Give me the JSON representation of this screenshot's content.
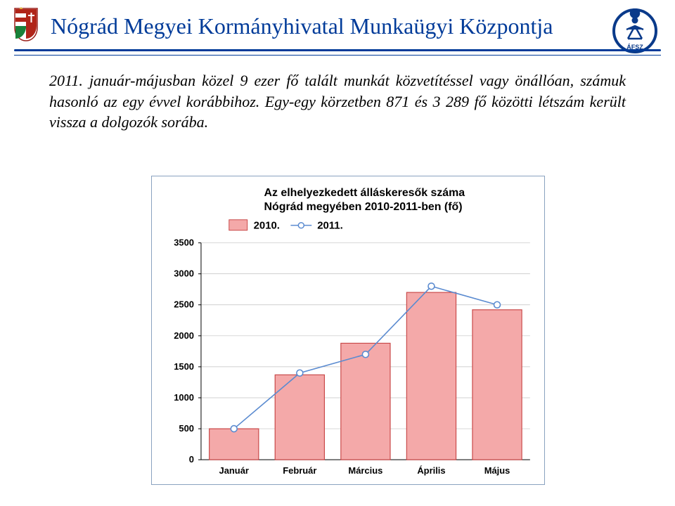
{
  "header": {
    "title": "Nógrád Megyei Kormányhivatal Munkaügyi Központja",
    "title_color": "#003b99",
    "rule_color": "#003b99"
  },
  "body_text": "2011. január-májusban közel 9 ezer fő talált munkát közvetítéssel vagy önállóan, számuk hasonló az egy évvel korábbihoz. Egy-egy körzetben 871 és 3 289 fő közötti létszám került vissza a dolgozók sorába.",
  "chart": {
    "type": "bar+line",
    "title_line1": "Az elhelyezkedett álláskeresők száma",
    "title_line2": "Nógrád megyében 2010-2011-ben (fő)",
    "title_fontsize": 16,
    "background_color": "#ffffff",
    "border_color": "#8aa2c0",
    "categories": [
      "Január",
      "Február",
      "Március",
      "Április",
      "Május"
    ],
    "series_bar": {
      "label": "2010.",
      "fill": "#f4a9a9",
      "stroke": "#c94a4a",
      "values": [
        500,
        1370,
        1880,
        2700,
        2420
      ]
    },
    "series_line": {
      "label": "2011.",
      "stroke": "#5b8bd0",
      "marker_fill": "#ffffff",
      "marker_stroke": "#5b8bd0",
      "values": [
        500,
        1400,
        1700,
        2800,
        2500
      ]
    },
    "y_axis": {
      "min": 0,
      "max": 3500,
      "step": 500,
      "grid_color": "#c0c0c0",
      "font_size": 13
    },
    "x_axis": {
      "font_size": 13
    },
    "legend": {
      "box_stroke": "#c94a4a",
      "box_fill": "#f4a9a9",
      "marker_stroke": "#5b8bd0",
      "marker_fill": "#ffffff"
    },
    "bar_width_ratio": 0.75
  }
}
